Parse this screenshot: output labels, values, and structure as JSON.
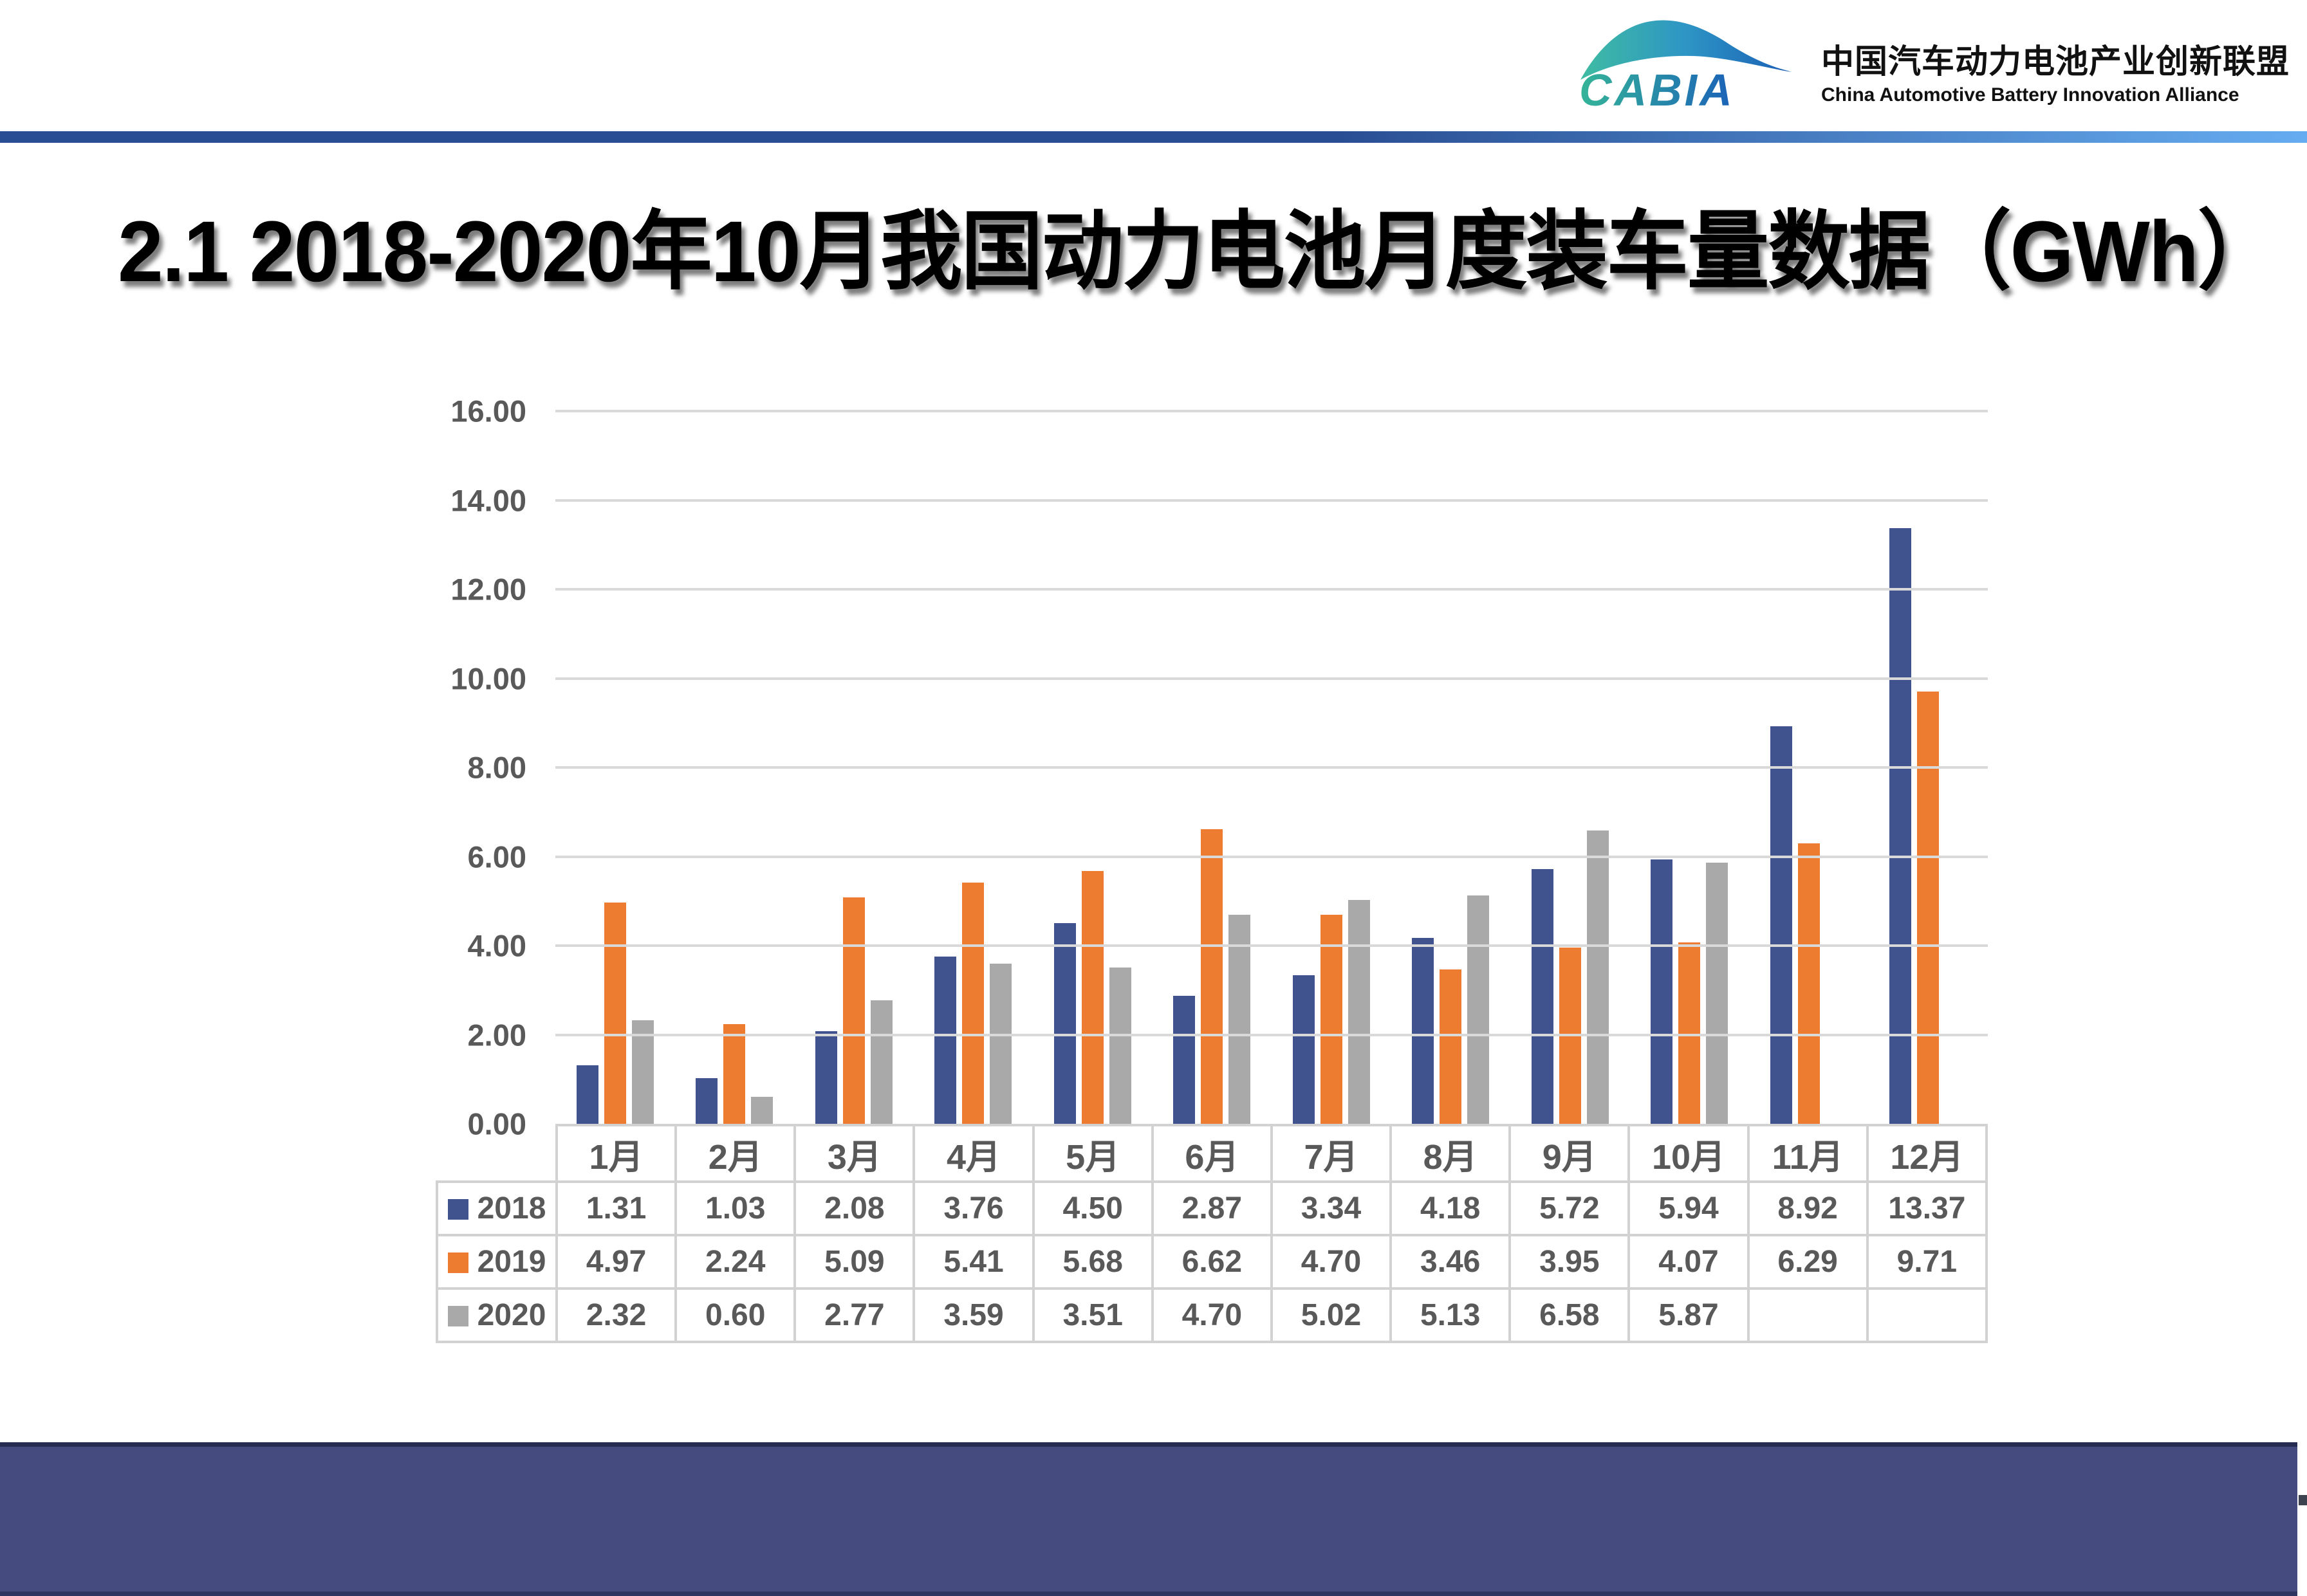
{
  "header": {
    "logo_abbr": "CABIA",
    "logo_name_cn": "中国汽车动力电池产业创新联盟",
    "logo_name_en": "China Automotive Battery Innovation Alliance"
  },
  "title": "2.1 2018-2020年10月我国动力电池月度装车量数据（GWh）",
  "chart_data": {
    "type": "bar",
    "title": "2018-2020年10月我国动力电池月度装车量数据",
    "unit": "GWh",
    "categories": [
      "1月",
      "2月",
      "3月",
      "4月",
      "5月",
      "6月",
      "7月",
      "8月",
      "9月",
      "10月",
      "11月",
      "12月"
    ],
    "series": [
      {
        "name": "2018",
        "color": "#40538F",
        "values": [
          1.31,
          1.03,
          2.08,
          3.76,
          4.5,
          2.87,
          3.34,
          4.18,
          5.72,
          5.94,
          8.92,
          13.37
        ]
      },
      {
        "name": "2019",
        "color": "#ED7C31",
        "values": [
          4.97,
          2.24,
          5.09,
          5.41,
          5.68,
          6.62,
          4.7,
          3.46,
          3.95,
          4.07,
          6.29,
          9.71
        ]
      },
      {
        "name": "2020",
        "color": "#A9A9A9",
        "values": [
          2.32,
          0.6,
          2.77,
          3.59,
          3.51,
          4.7,
          5.02,
          5.13,
          6.58,
          5.87,
          null,
          null
        ]
      }
    ],
    "ylim": [
      0,
      16
    ],
    "ytick_step": 2,
    "value_decimals": 2,
    "grid": true,
    "legend_position": "table-left"
  },
  "colors": {
    "rule_gradient_start": "#2A4E93",
    "rule_gradient_end": "#66ACF0",
    "footer": "#454B7E",
    "table_text": "#595959",
    "gridline": "#D9D9D9"
  }
}
